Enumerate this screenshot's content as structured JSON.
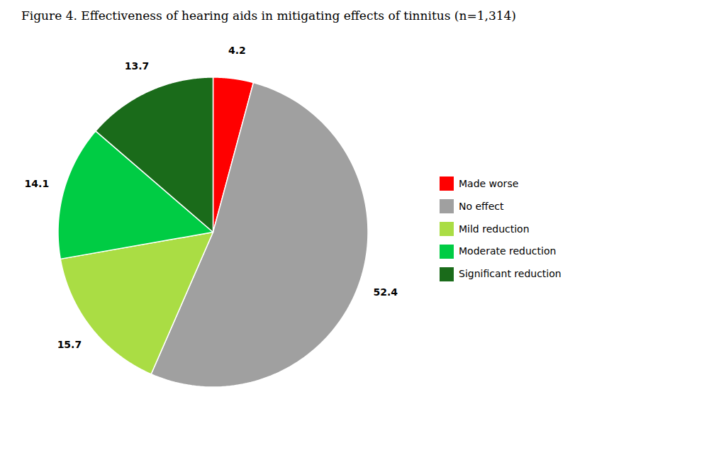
{
  "chart_data": {
    "type": "pie",
    "title": "Figure 4. Effectiveness of hearing aids in mitigating effects of tinnitus (n=1,314)",
    "categories": [
      "Made worse",
      "No effect",
      "Mild reduction",
      "Moderate reduction",
      "Significant reduction"
    ],
    "values": [
      4.2,
      52.4,
      15.7,
      14.1,
      13.7
    ],
    "colors": [
      "#FF0000",
      "#A0A0A0",
      "#AADD44",
      "#00CC44",
      "#1A6B1A"
    ],
    "data_labels": true,
    "legend": "right"
  }
}
